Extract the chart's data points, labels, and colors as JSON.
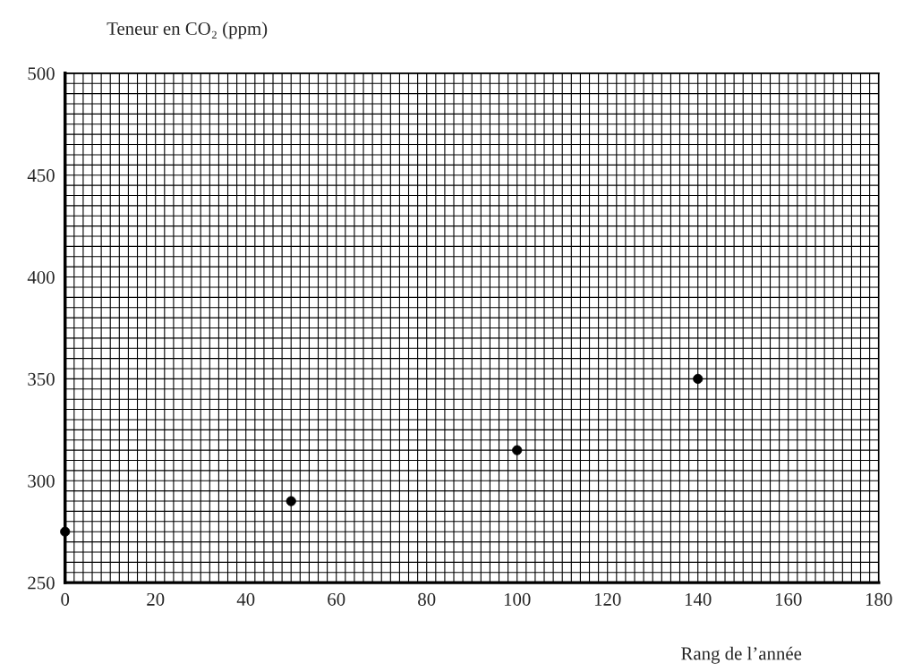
{
  "chart_data": {
    "type": "scatter",
    "ylabel": "Teneur en CO₂ (ppm)",
    "xlabel": "Rang de l’année",
    "x": [
      0,
      50,
      100,
      140
    ],
    "series": [
      {
        "color": "#000000",
        "values": [
          275,
          290,
          315,
          350
        ]
      }
    ],
    "xlim": [
      0,
      180
    ],
    "xticks": [
      0,
      20,
      40,
      60,
      80,
      100,
      120,
      140,
      160,
      180
    ],
    "ylim": [
      250,
      500
    ],
    "yticks": [
      250,
      300,
      350,
      400,
      450,
      500
    ],
    "grid": true,
    "marker": "circle"
  }
}
